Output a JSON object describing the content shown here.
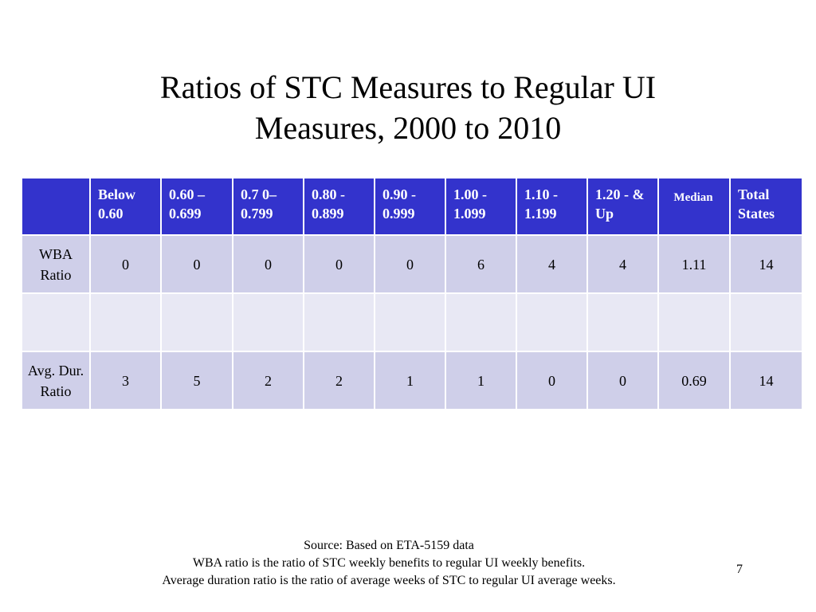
{
  "slide": {
    "title_line1": "Ratios of STC Measures to Regular UI",
    "title_line2": "Measures, 2000 to 2010",
    "page_number": "7"
  },
  "table": {
    "headers": [
      "",
      "Below 0.60",
      "0.60 – 0.699",
      "0.7 0– 0.799",
      "0.80 - 0.899",
      "0.90 - 0.999",
      "1.00 - 1.099",
      "1.10 - 1.199",
      "1.20 - & Up",
      "Median",
      "Total States"
    ],
    "rows": [
      {
        "label": "WBA Ratio",
        "cells": [
          "0",
          "0",
          "0",
          "0",
          "0",
          "6",
          "4",
          "4",
          "1.11",
          "14"
        ]
      },
      {
        "label": "",
        "cells": [
          "",
          "",
          "",
          "",
          "",
          "",
          "",
          "",
          "",
          ""
        ]
      },
      {
        "label": "Avg. Dur. Ratio",
        "cells": [
          "3",
          "5",
          "2",
          "2",
          "1",
          "1",
          "0",
          "0",
          "0.69",
          "14"
        ]
      }
    ]
  },
  "notes": {
    "source": "Source: Based on ETA-5159 data",
    "wba_note": "WBA ratio is the ratio of STC weekly benefits to regular UI weekly benefits.",
    "duration_note": "Average duration ratio is the ratio of average weeks of STC to regular UI average weeks."
  },
  "colors": {
    "header_bg": "#3333cc",
    "row_dark": "#cfcfe9",
    "row_light": "#e8e8f4"
  }
}
